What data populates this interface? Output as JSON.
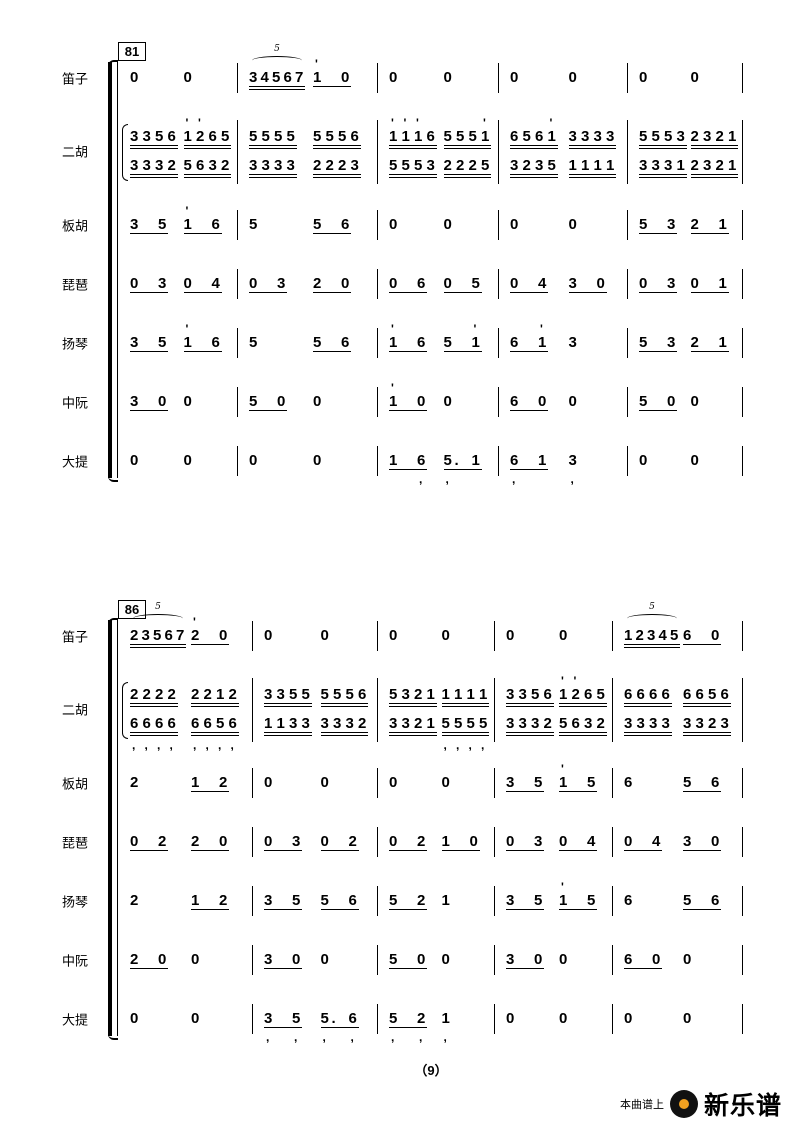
{
  "instruments": [
    "笛子",
    "二胡",
    "板胡",
    "琵琶",
    "扬琴",
    "中阮",
    "大提"
  ],
  "page_number": "（9）",
  "watermark": {
    "prefix": "本曲谱上",
    "brand": "新乐谱",
    "icon": "vinyl-disc-icon",
    "accent": "#f0a020"
  },
  "notation_key": "Notes separated by spaces; ' = high-octave dot, , = low-octave dot, . = augmentation dot; u = number of underlines; t = tuplet number",
  "systems": [
    {
      "measure_number": "81",
      "rows": {
        "dizi": [
          [
            {
              "n": "0"
            },
            {
              "n": "0"
            }
          ],
          [
            {
              "n": "3 4 5 6 7",
              "u": 2,
              "t": "5"
            },
            {
              "n": "1' 0",
              "u": 1
            }
          ],
          [
            {
              "n": "0"
            },
            {
              "n": "0"
            }
          ],
          [
            {
              "n": "0"
            },
            {
              "n": "0"
            }
          ],
          [
            {
              "n": "0"
            },
            {
              "n": "0"
            }
          ]
        ],
        "erhu_upper": [
          [
            {
              "n": "3 3 5 6",
              "u": 2
            },
            {
              "n": "1' 2' 6 5",
              "u": 2
            }
          ],
          [
            {
              "n": "5 5 5 5",
              "u": 2
            },
            {
              "n": "5 5 5 6",
              "u": 2
            }
          ],
          [
            {
              "n": "1' 1' 1' 6",
              "u": 2
            },
            {
              "n": "5 5 5 1'",
              "u": 2
            }
          ],
          [
            {
              "n": "6 5 6 1'",
              "u": 2
            },
            {
              "n": "3 3 3 3",
              "u": 2
            }
          ],
          [
            {
              "n": "5 5 5 3",
              "u": 2
            },
            {
              "n": "2 3 2 1",
              "u": 2
            }
          ]
        ],
        "erhu_lower": [
          [
            {
              "n": "3 3 3 2",
              "u": 2
            },
            {
              "n": "5 6 3 2",
              "u": 2
            }
          ],
          [
            {
              "n": "3 3 3 3",
              "u": 2
            },
            {
              "n": "2 2 2 3",
              "u": 2
            }
          ],
          [
            {
              "n": "5 5 5 3",
              "u": 2
            },
            {
              "n": "2 2 2 5",
              "u": 2
            }
          ],
          [
            {
              "n": "3 2 3 5",
              "u": 2
            },
            {
              "n": "1 1 1 1",
              "u": 2
            }
          ],
          [
            {
              "n": "3 3 3 1",
              "u": 2
            },
            {
              "n": "2 3 2 1",
              "u": 2
            }
          ]
        ],
        "banhu": [
          [
            {
              "n": "3 5",
              "u": 1
            },
            {
              "n": "1' 6",
              "u": 1
            }
          ],
          [
            {
              "n": "5"
            },
            {
              "n": "5 6",
              "u": 1
            }
          ],
          [
            {
              "n": "0"
            },
            {
              "n": "0"
            }
          ],
          [
            {
              "n": "0"
            },
            {
              "n": "0"
            }
          ],
          [
            {
              "n": "5 3",
              "u": 1
            },
            {
              "n": "2 1",
              "u": 1
            }
          ]
        ],
        "pipa": [
          [
            {
              "n": "0 3",
              "u": 1
            },
            {
              "n": "0 4",
              "u": 1
            }
          ],
          [
            {
              "n": "0 3",
              "u": 1
            },
            {
              "n": "2 0",
              "u": 1
            }
          ],
          [
            {
              "n": "0 6",
              "u": 1
            },
            {
              "n": "0 5",
              "u": 1
            }
          ],
          [
            {
              "n": "0 4",
              "u": 1
            },
            {
              "n": "3 0",
              "u": 1
            }
          ],
          [
            {
              "n": "0 3",
              "u": 1
            },
            {
              "n": "0 1",
              "u": 1
            }
          ]
        ],
        "yangqin": [
          [
            {
              "n": "3 5",
              "u": 1
            },
            {
              "n": "1' 6",
              "u": 1
            }
          ],
          [
            {
              "n": "5"
            },
            {
              "n": "5 6",
              "u": 1
            }
          ],
          [
            {
              "n": "1' 6",
              "u": 1
            },
            {
              "n": "5 1'",
              "u": 1
            }
          ],
          [
            {
              "n": "6 1'",
              "u": 1
            },
            {
              "n": "3"
            }
          ],
          [
            {
              "n": "5 3",
              "u": 1
            },
            {
              "n": "2 1",
              "u": 1
            }
          ]
        ],
        "zhongruan": [
          [
            {
              "n": "3 0",
              "u": 1
            },
            {
              "n": "0"
            }
          ],
          [
            {
              "n": "5 0",
              "u": 1
            },
            {
              "n": "0"
            }
          ],
          [
            {
              "n": "1' 0",
              "u": 1
            },
            {
              "n": "0"
            }
          ],
          [
            {
              "n": "6 0",
              "u": 1
            },
            {
              "n": "0"
            }
          ],
          [
            {
              "n": "5 0",
              "u": 1
            },
            {
              "n": "0"
            }
          ]
        ],
        "dati": [
          [
            {
              "n": "0"
            },
            {
              "n": "0"
            }
          ],
          [
            {
              "n": "0"
            },
            {
              "n": "0"
            }
          ],
          [
            {
              "n": "1 6,",
              "u": 1
            },
            {
              "n": "5,. 1",
              "u": 1
            }
          ],
          [
            {
              "n": "6, 1",
              "u": 1
            },
            {
              "n": "3,"
            }
          ],
          [
            {
              "n": "0"
            },
            {
              "n": "0"
            }
          ]
        ]
      }
    },
    {
      "measure_number": "86",
      "rows": {
        "dizi": [
          [
            {
              "n": "2 3 5 6 7",
              "u": 2,
              "t": "5"
            },
            {
              "n": "2' 0",
              "u": 1
            }
          ],
          [
            {
              "n": "0"
            },
            {
              "n": "0"
            }
          ],
          [
            {
              "n": "0"
            },
            {
              "n": "0"
            }
          ],
          [
            {
              "n": "0"
            },
            {
              "n": "0"
            }
          ],
          [
            {
              "n": "1 2 3 4 5",
              "u": 2,
              "t": "5"
            },
            {
              "n": "6 0",
              "u": 1
            }
          ]
        ],
        "erhu_upper": [
          [
            {
              "n": "2 2 2 2",
              "u": 2
            },
            {
              "n": "2 2 1 2",
              "u": 2
            }
          ],
          [
            {
              "n": "3 3 5 5",
              "u": 2
            },
            {
              "n": "5 5 5 6",
              "u": 2
            }
          ],
          [
            {
              "n": "5 3 2 1",
              "u": 2
            },
            {
              "n": "1 1 1 1",
              "u": 2
            }
          ],
          [
            {
              "n": "3 3 5 6",
              "u": 2
            },
            {
              "n": "1' 2' 6 5",
              "u": 2
            }
          ],
          [
            {
              "n": "6 6 6 6",
              "u": 2
            },
            {
              "n": "6 6 5 6",
              "u": 2
            }
          ]
        ],
        "erhu_lower": [
          [
            {
              "n": "6, 6, 6, 6,",
              "u": 2
            },
            {
              "n": "6, 6, 5, 6,",
              "u": 2
            }
          ],
          [
            {
              "n": "1 1 3 3",
              "u": 2
            },
            {
              "n": "3 3 3 2",
              "u": 2
            }
          ],
          [
            {
              "n": "3 3 2 1",
              "u": 2
            },
            {
              "n": "5, 5, 5, 5,",
              "u": 2
            }
          ],
          [
            {
              "n": "3 3 3 2",
              "u": 2
            },
            {
              "n": "5 6 3 2",
              "u": 2
            }
          ],
          [
            {
              "n": "3 3 3 3",
              "u": 2
            },
            {
              "n": "3 3 2 3",
              "u": 2
            }
          ]
        ],
        "banhu": [
          [
            {
              "n": "2"
            },
            {
              "n": "1 2",
              "u": 1
            }
          ],
          [
            {
              "n": "0"
            },
            {
              "n": "0"
            }
          ],
          [
            {
              "n": "0"
            },
            {
              "n": "0"
            }
          ],
          [
            {
              "n": "3 5",
              "u": 1
            },
            {
              "n": "1' 5",
              "u": 1
            }
          ],
          [
            {
              "n": "6"
            },
            {
              "n": "5 6",
              "u": 1
            }
          ]
        ],
        "pipa": [
          [
            {
              "n": "0 2",
              "u": 1
            },
            {
              "n": "2 0",
              "u": 1
            }
          ],
          [
            {
              "n": "0 3",
              "u": 1
            },
            {
              "n": "0 2",
              "u": 1
            }
          ],
          [
            {
              "n": "0 2",
              "u": 1
            },
            {
              "n": "1 0",
              "u": 1
            }
          ],
          [
            {
              "n": "0 3",
              "u": 1
            },
            {
              "n": "0 4",
              "u": 1
            }
          ],
          [
            {
              "n": "0 4",
              "u": 1
            },
            {
              "n": "3 0",
              "u": 1
            }
          ]
        ],
        "yangqin": [
          [
            {
              "n": "2"
            },
            {
              "n": "1 2",
              "u": 1
            }
          ],
          [
            {
              "n": "3 5",
              "u": 1
            },
            {
              "n": "5 6",
              "u": 1
            }
          ],
          [
            {
              "n": "5 2",
              "u": 1
            },
            {
              "n": "1"
            }
          ],
          [
            {
              "n": "3 5",
              "u": 1
            },
            {
              "n": "1' 5",
              "u": 1
            }
          ],
          [
            {
              "n": "6"
            },
            {
              "n": "5 6",
              "u": 1
            }
          ]
        ],
        "zhongruan": [
          [
            {
              "n": "2 0",
              "u": 1
            },
            {
              "n": "0"
            }
          ],
          [
            {
              "n": "3 0",
              "u": 1
            },
            {
              "n": "0"
            }
          ],
          [
            {
              "n": "5 0",
              "u": 1
            },
            {
              "n": "0"
            }
          ],
          [
            {
              "n": "3 0",
              "u": 1
            },
            {
              "n": "0"
            }
          ],
          [
            {
              "n": "6 0",
              "u": 1
            },
            {
              "n": "0"
            }
          ]
        ],
        "dati": [
          [
            {
              "n": "0"
            },
            {
              "n": "0"
            }
          ],
          [
            {
              "n": "3, 5,",
              "u": 1
            },
            {
              "n": "5,. 6,",
              "u": 1
            }
          ],
          [
            {
              "n": "5, 2,",
              "u": 1
            },
            {
              "n": "1,"
            }
          ],
          [
            {
              "n": "0"
            },
            {
              "n": "0"
            }
          ],
          [
            {
              "n": "0"
            },
            {
              "n": "0"
            }
          ]
        ]
      }
    }
  ]
}
